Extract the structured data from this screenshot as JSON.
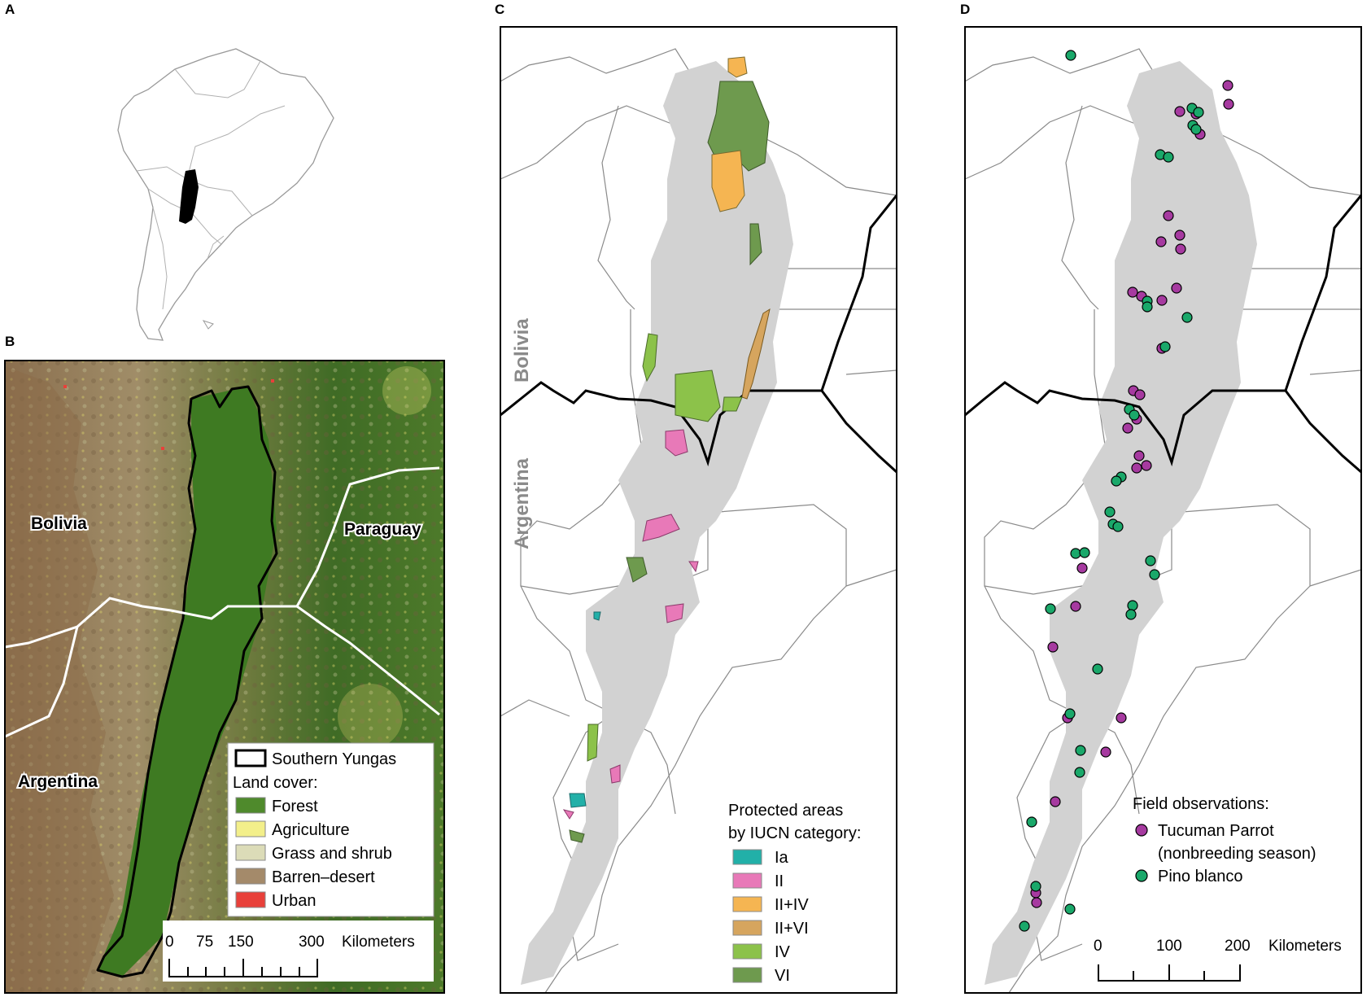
{
  "panels": {
    "a": {
      "letter": "A"
    },
    "b": {
      "letter": "B",
      "labels": {
        "bolivia": "Bolivia",
        "paraguay": "Paraguay",
        "argentina": "Argentina"
      },
      "legend": {
        "boundary": "Southern Yungas",
        "heading": "Land cover:",
        "items": [
          {
            "label": "Forest",
            "color": "#4f8a2c"
          },
          {
            "label": "Agriculture",
            "color": "#f3ef8a"
          },
          {
            "label": "Grass and shrub",
            "color": "#dcdcb8"
          },
          {
            "label": "Barren–desert",
            "color": "#a48a6a"
          },
          {
            "label": "Urban",
            "color": "#e8403a"
          }
        ]
      },
      "scale": {
        "ticks": [
          "0",
          "75",
          "150",
          "300"
        ],
        "unit": "Kilometers"
      }
    },
    "c": {
      "letter": "C",
      "labels": {
        "bolivia": "Bolivia",
        "argentina": "Argentina"
      },
      "legend": {
        "heading_line1": "Protected areas",
        "heading_line2": "by IUCN category:",
        "items": [
          {
            "label": "Ia",
            "color": "#22b0a8"
          },
          {
            "label": "II",
            "color": "#e879b8"
          },
          {
            "label": "II+IV",
            "color": "#f5b552"
          },
          {
            "label": "II+VI",
            "color": "#d6a55e"
          },
          {
            "label": "IV",
            "color": "#8cc24a"
          },
          {
            "label": "VI",
            "color": "#6e9a4e"
          }
        ]
      }
    },
    "d": {
      "letter": "D",
      "legend": {
        "heading": "Field observations:",
        "items": [
          {
            "label": "Tucuman Parrot",
            "label2": "(nonbreeding season)",
            "color": "#a63aa0"
          },
          {
            "label": "Pino blanco",
            "label2": "",
            "color": "#1aa86a"
          }
        ]
      },
      "scale": {
        "ticks": [
          "0",
          "100",
          "200"
        ],
        "unit": "Kilometers"
      }
    }
  }
}
